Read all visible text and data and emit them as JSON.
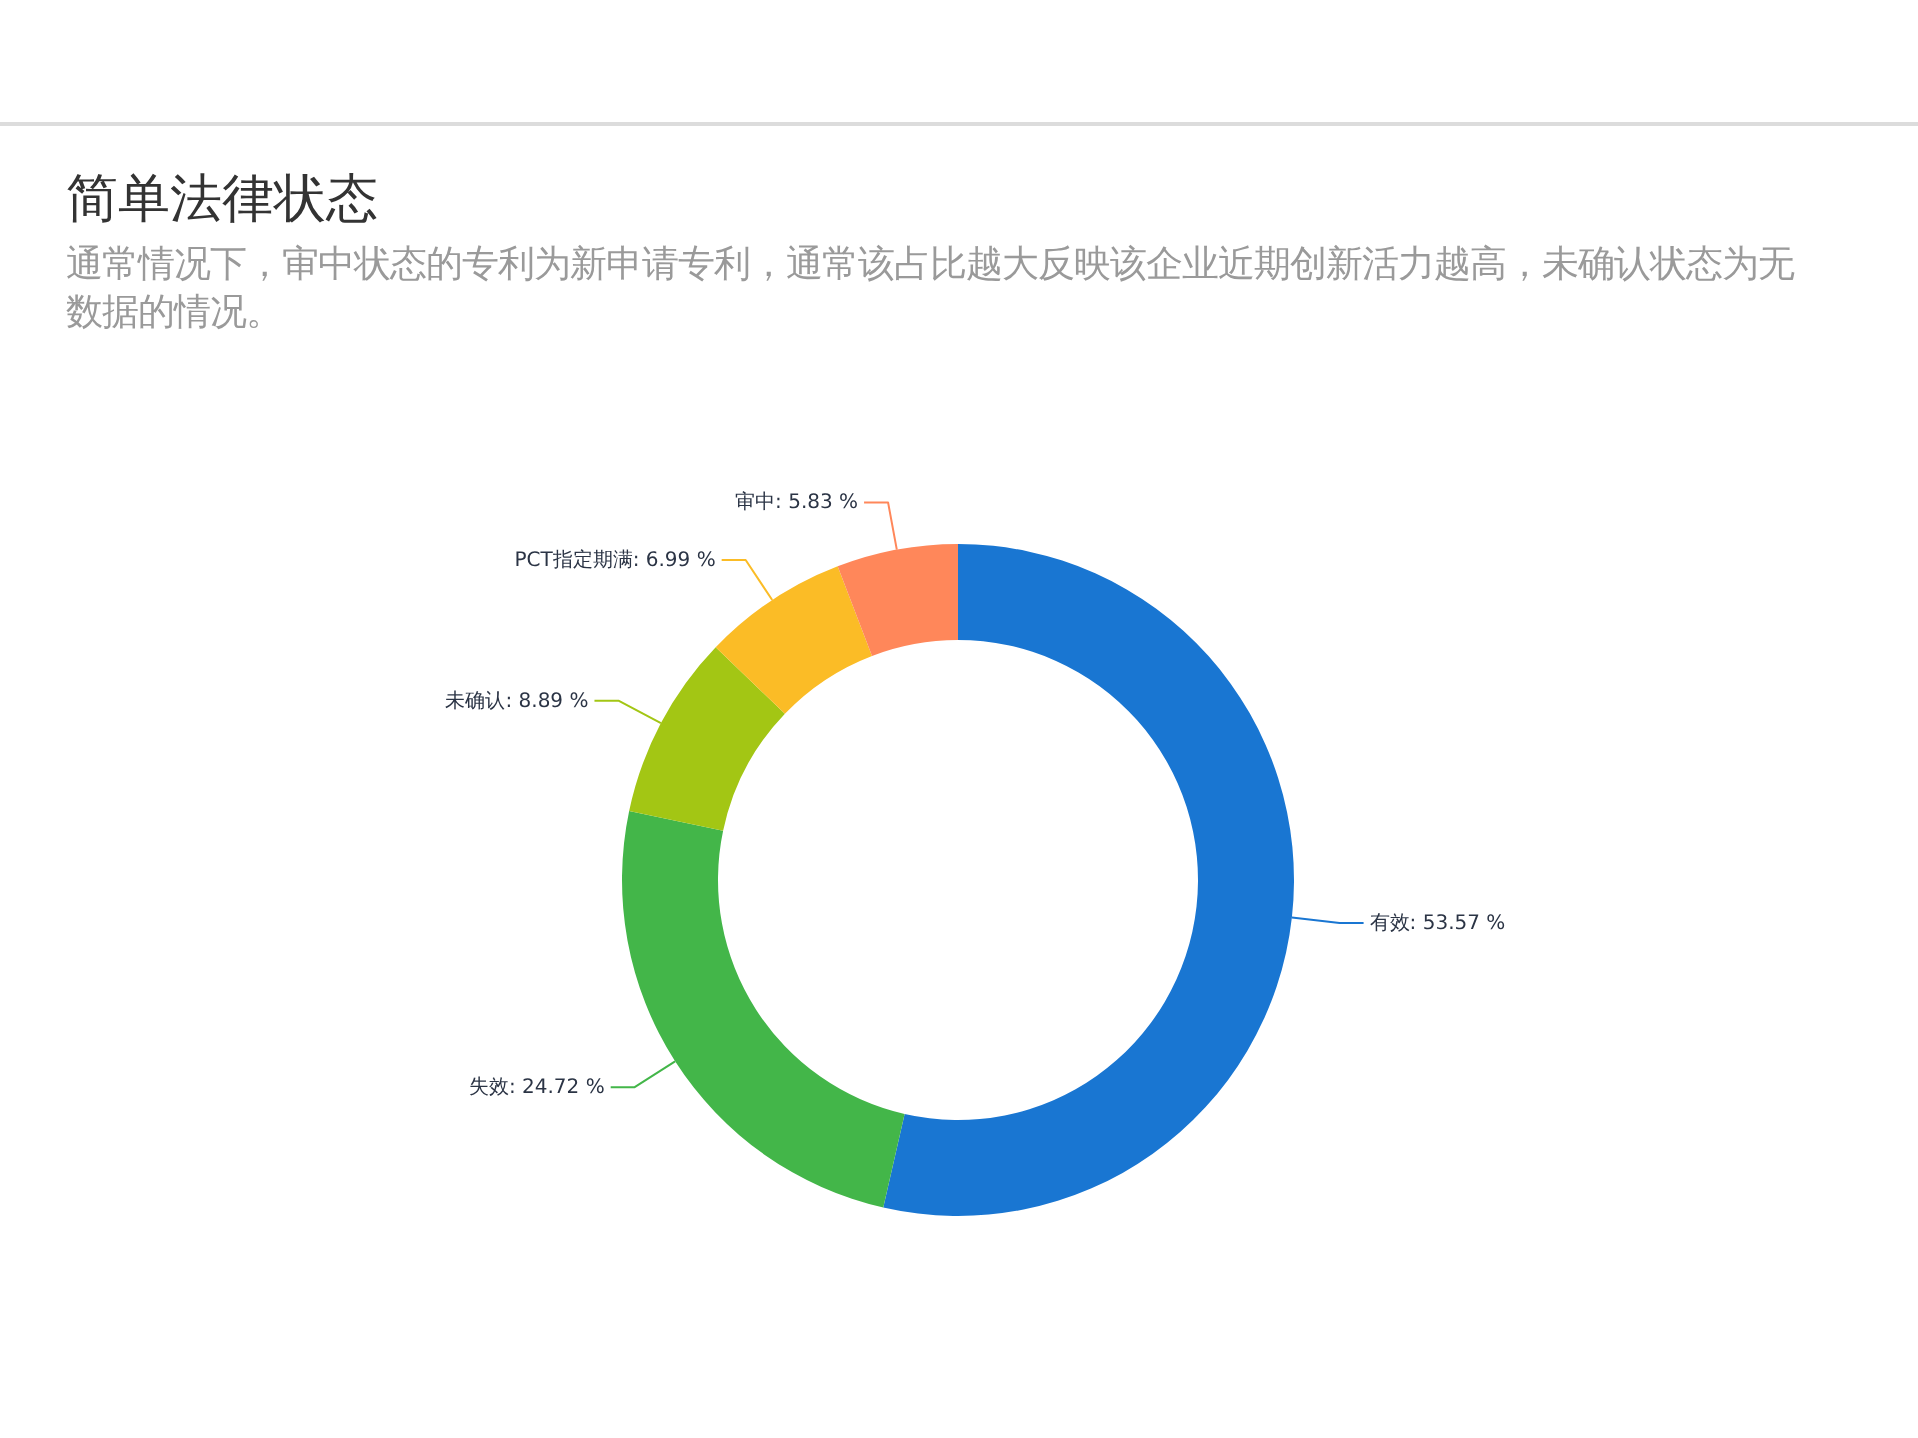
{
  "chart_data": {
    "type": "donut",
    "title": "简单法律状态",
    "subtitle": "通常情况下，审中状态的专利为新申请专利，通常该占比越大反映该企业近期创新活力越高，未确认状态为无数据的情况。",
    "categories": [
      "有效",
      "失效",
      "未确认",
      "PCT指定期满",
      "审中"
    ],
    "values": [
      53.57,
      24.72,
      8.89,
      6.99,
      5.83
    ],
    "colors": [
      "#1976d2",
      "#43b649",
      "#a3c614",
      "#fbbc26",
      "#ff875a"
    ],
    "value_labels": [
      ": 53.57 %",
      ": 24.72 %",
      ": 8.89 %",
      ": 6.99 %",
      ": 5.83 %"
    ]
  }
}
